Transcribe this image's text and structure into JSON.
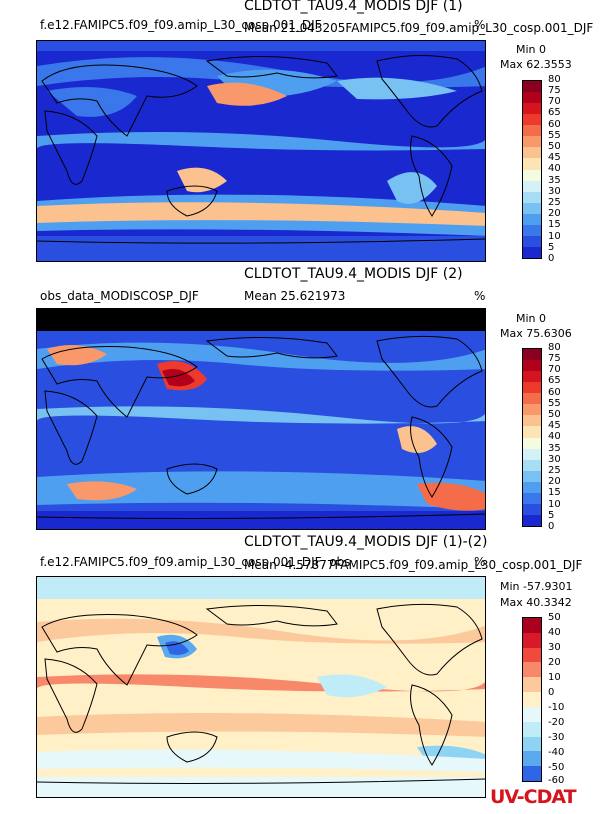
{
  "panels": [
    {
      "title": "CLDTOT_TAU9.4_MODIS DJF (1)",
      "case_label": "f.e12.FAMIPC5.f09_f09.amip_L30_cosp.001_DJF",
      "overlap_label": "Mean 21.043205FAMIPC5.f09_f09.amip_L30_cosp.001_DJF",
      "units": "%",
      "min": "Min 0",
      "max": "Max 62.3553",
      "levels": [
        "80",
        "75",
        "70",
        "65",
        "60",
        "55",
        "50",
        "45",
        "40",
        "35",
        "30",
        "25",
        "20",
        "15",
        "10",
        "5",
        "0"
      ],
      "colors": [
        "#8b0020",
        "#b1001c",
        "#d6141d",
        "#ee3a2d",
        "#f56c4a",
        "#f9996b",
        "#fbc18f",
        "#fde4b4",
        "#f5fbe0",
        "#d4f1f8",
        "#a7def6",
        "#77c2f3",
        "#4f9ff0",
        "#3a77ea",
        "#2a4fe0",
        "#1a28d0"
      ]
    },
    {
      "title": "CLDTOT_TAU9.4_MODIS DJF (2)",
      "case_label": "obs_data_MODISCOSP_DJF",
      "mean_label": "Mean 25.621973",
      "units": "%",
      "min": "Min 0",
      "max": "Max 75.6306",
      "levels": [
        "80",
        "75",
        "70",
        "65",
        "60",
        "55",
        "50",
        "45",
        "40",
        "35",
        "30",
        "25",
        "20",
        "15",
        "10",
        "5",
        "0"
      ],
      "colors": [
        "#8b0020",
        "#b1001c",
        "#d6141d",
        "#ee3a2d",
        "#f56c4a",
        "#f9996b",
        "#fbc18f",
        "#fde4b4",
        "#f5fbe0",
        "#d4f1f8",
        "#a7def6",
        "#77c2f3",
        "#4f9ff0",
        "#3a77ea",
        "#2a4fe0",
        "#1a28d0"
      ]
    },
    {
      "title": "CLDTOT_TAU9.4_MODIS DJF (1)-(2)",
      "case_label": "f.e12.FAMIPC5.f09_f09.amip_L30_cosp.001_DJF, obs",
      "overlap_label": "Mean -4.57877FAMIPC5.f09_f09.amip_L30_cosp.001_DJF",
      "units": "%",
      "min": "Min -57.9301",
      "max": "Max 40.3342",
      "levels": [
        "50",
        "40",
        "30",
        "20",
        "10",
        "0",
        "-10",
        "-20",
        "-30",
        "-40",
        "-50",
        "-60"
      ],
      "colors": [
        "#a8001e",
        "#d8192a",
        "#f04a3c",
        "#f7886a",
        "#fbc99c",
        "#fff0c8",
        "#e6f8fa",
        "#c0ecf8",
        "#8fd3f4",
        "#5aaaf0",
        "#2f66e6"
      ]
    }
  ],
  "logo": {
    "text": "UV-CDAT"
  }
}
